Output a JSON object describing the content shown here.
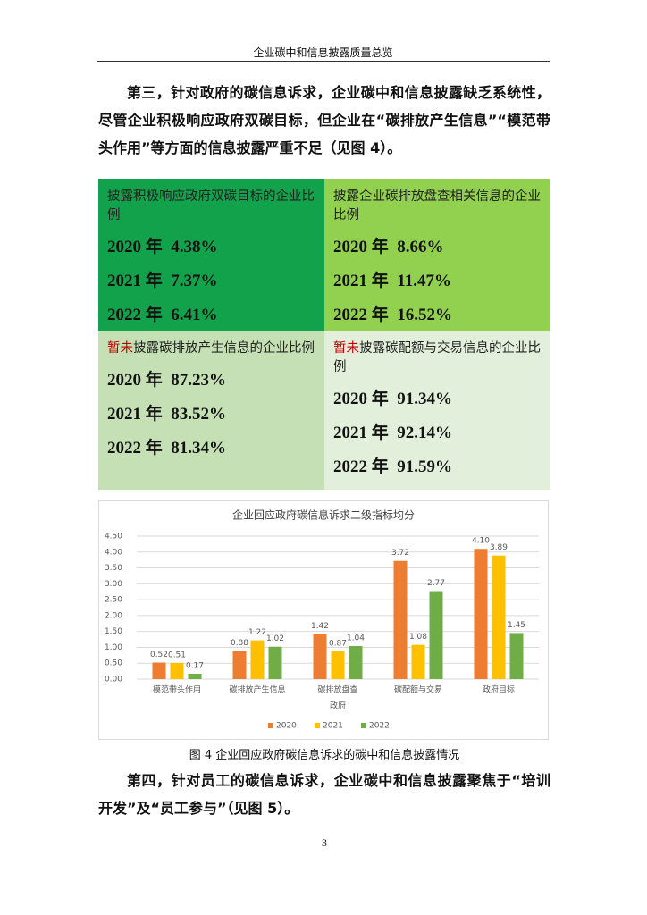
{
  "header": {
    "title": "企业碳中和信息披露质量总览"
  },
  "paragraphs": [
    "第三，针对政府的碳信息诉求，企业碳中和信息披露缺乏系统性，尽管企业积极响应政府双碳目标，但企业在“碳排放产生信息”“模范带头作用”等方面的信息披露严重不足（见图 4）。",
    "第四，针对员工的碳信息诉求，企业碳中和信息披露聚焦于“培训开发”及“员工参与”（见图 5）。"
  ],
  "boxes": [
    {
      "title": "披露积极响应政府双碳目标的企业比例",
      "rows": [
        "2020 年  4.38%",
        "2021 年  7.37%",
        "2022 年  6.41%"
      ]
    },
    {
      "title": "披露企业碳排放盘查相关信息的企业比例",
      "rows": [
        "2020 年  8.66%",
        "2021 年  11.47%",
        "2022 年  16.52%"
      ]
    },
    {
      "highlight": "暂未",
      "title": "披露碳排放产生信息的企业比例",
      "rows": [
        "2020 年  87.23%",
        "2021 年  83.52%",
        "2022 年  81.34%"
      ]
    },
    {
      "highlight": "暂未",
      "title": "披露碳配额与交易信息的企业比例",
      "rows": [
        "2020 年  91.34%",
        "2021 年  92.14%",
        "2022 年  91.59%"
      ]
    }
  ],
  "chart_data": {
    "type": "bar",
    "title": "企业回应政府碳信息诉求二级指标均分",
    "x_label": "政府",
    "categories": [
      "模范带头作用",
      "碳排放产生信息",
      "碳排放盘查",
      "碳配额与交易",
      "政府目标"
    ],
    "series": [
      {
        "name": "2020",
        "color": "#ed7d31",
        "values": [
          0.52,
          0.88,
          1.42,
          3.72,
          4.1
        ],
        "value_labels": [
          "0.52",
          "0.88",
          "1.42",
          "3.72",
          "4.10"
        ]
      },
      {
        "name": "2021",
        "color": "#ffc000",
        "values": [
          0.51,
          1.22,
          0.87,
          1.08,
          3.89
        ],
        "value_labels": [
          "0.51",
          "1.22",
          "0.87",
          "1.08",
          "3.89"
        ]
      },
      {
        "name": "2022",
        "color": "#70ad47",
        "values": [
          0.17,
          1.02,
          1.04,
          2.77,
          1.45
        ],
        "value_labels": [
          "0.17",
          "1.02",
          "1.04",
          "2.77",
          "1.45"
        ]
      }
    ],
    "ylim": [
      0,
      4.5
    ],
    "yticks": [
      {
        "value": 0,
        "label": "0.00"
      },
      {
        "value": 0.5,
        "label": "0.50"
      },
      {
        "value": 1,
        "label": "1.00"
      },
      {
        "value": 1.5,
        "label": "1.50"
      },
      {
        "value": 2,
        "label": "2.00"
      },
      {
        "value": 2.5,
        "label": "2.50"
      },
      {
        "value": 3,
        "label": "3.00"
      },
      {
        "value": 3.5,
        "label": "3.50"
      },
      {
        "value": 4,
        "label": "4.00"
      },
      {
        "value": 4.5,
        "label": "4.50"
      }
    ],
    "grid": true,
    "legend": "bottom"
  },
  "caption": "图 4 企业回应政府碳信息诉求的碳中和信息披露情况",
  "page_number": "3"
}
